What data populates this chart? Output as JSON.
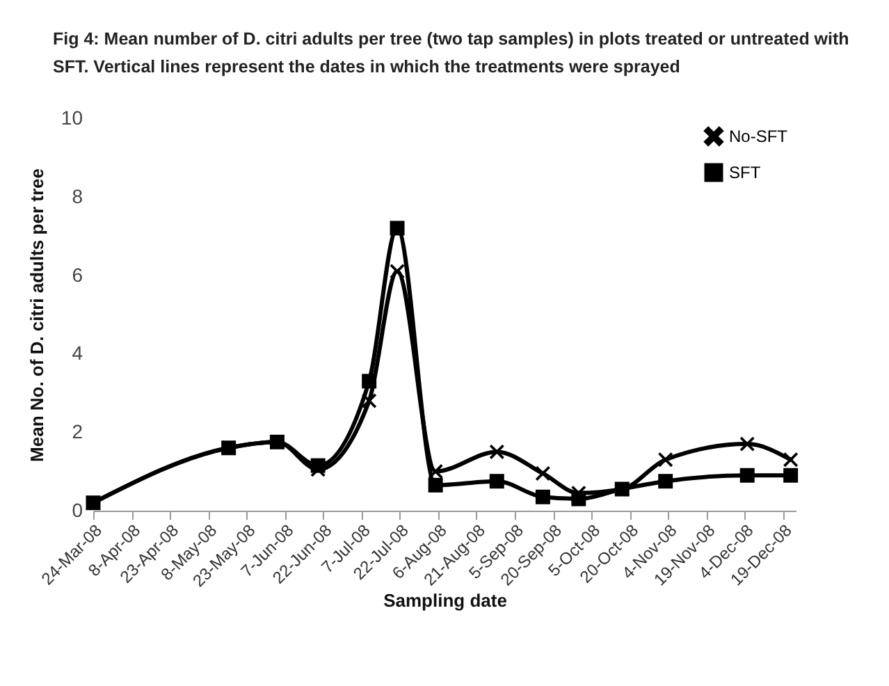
{
  "chart_data": {
    "type": "line",
    "title": "Fig 4: Mean number of D. citri adults per tree (two tap samples) in plots treated or untreated with SFT. Vertical lines represent the dates in which the treatments were sprayed",
    "xlabel": "Sampling date",
    "ylabel": "Mean No. of D. citri adults per tree",
    "x": [
      "2008-03-24",
      "2008-05-16",
      "2008-06-04",
      "2008-06-20",
      "2008-07-10",
      "2008-07-21",
      "2008-08-05",
      "2008-08-29",
      "2008-09-16",
      "2008-09-30",
      "2008-10-17",
      "2008-11-03",
      "2008-12-05",
      "2008-12-22"
    ],
    "series": [
      {
        "name": "No-SFT",
        "color": "#000000",
        "marker": "cross",
        "values": [
          0.2,
          1.6,
          1.75,
          1.05,
          2.8,
          6.1,
          1.0,
          1.5,
          0.95,
          0.45,
          0.55,
          1.3,
          1.7,
          1.3
        ]
      },
      {
        "name": "SFT",
        "color": "#000000",
        "marker": "square",
        "values": [
          0.2,
          1.6,
          1.75,
          1.15,
          3.3,
          7.2,
          0.65,
          0.75,
          0.35,
          0.3,
          0.55,
          0.75,
          0.9,
          0.9
        ]
      }
    ],
    "xlim": [
      "2008-03-24",
      "2008-12-24"
    ],
    "xticks": [
      {
        "value": "2008-03-24",
        "label": "24-Mar-08"
      },
      {
        "value": "2008-04-08",
        "label": "8-Apr-08"
      },
      {
        "value": "2008-04-23",
        "label": "23-Apr-08"
      },
      {
        "value": "2008-05-08",
        "label": "8-May-08"
      },
      {
        "value": "2008-05-23",
        "label": "23-May-08"
      },
      {
        "value": "2008-06-07",
        "label": "7-Jun-08"
      },
      {
        "value": "2008-06-22",
        "label": "22-Jun-08"
      },
      {
        "value": "2008-07-07",
        "label": "7-Jul-08"
      },
      {
        "value": "2008-07-22",
        "label": "22-Jul-08"
      },
      {
        "value": "2008-08-06",
        "label": "6-Aug-08"
      },
      {
        "value": "2008-08-21",
        "label": "21-Aug-08"
      },
      {
        "value": "2008-09-05",
        "label": "5-Sep-08"
      },
      {
        "value": "2008-09-20",
        "label": "20-Sep-08"
      },
      {
        "value": "2008-10-05",
        "label": "5-Oct-08"
      },
      {
        "value": "2008-10-20",
        "label": "20-Oct-08"
      },
      {
        "value": "2008-11-04",
        "label": "4-Nov-08"
      },
      {
        "value": "2008-11-19",
        "label": "19-Nov-08"
      },
      {
        "value": "2008-12-04",
        "label": "4-Dec-08"
      },
      {
        "value": "2008-12-19",
        "label": "19-Dec-08"
      }
    ],
    "ylim": [
      0,
      10
    ],
    "yticks": [
      0,
      2,
      4,
      6,
      8,
      10
    ],
    "grid": false,
    "legend": "top right"
  }
}
